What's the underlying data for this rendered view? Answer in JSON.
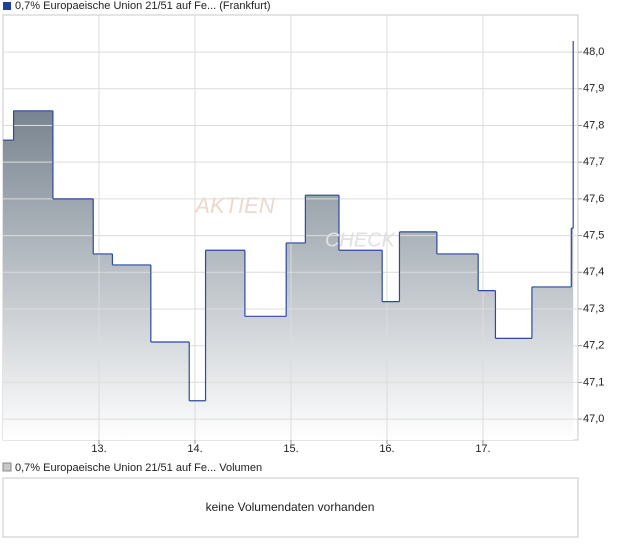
{
  "chart_data": {
    "type": "line",
    "legend_name": "0,7% Europaeische Union 21/51 auf Fe...",
    "exchange": "(Frankfurt)",
    "watermark": [
      "AKTIEN",
      "CHECK"
    ],
    "line_color": "#2b4aa0",
    "area_top_color": "#5c6a78",
    "legend_color": "#1f3f99",
    "x": [
      12.0,
      12.11,
      12.52,
      12.94,
      13.14,
      13.54,
      13.94,
      14.11,
      14.52,
      14.95,
      15.15,
      15.5,
      15.95,
      16.13,
      16.52,
      16.95,
      17.13,
      17.51,
      17.92,
      17.94
    ],
    "values": [
      47.76,
      47.84,
      47.6,
      47.45,
      47.42,
      47.21,
      47.05,
      47.46,
      47.28,
      47.48,
      47.61,
      47.46,
      47.32,
      47.51,
      47.45,
      47.35,
      47.22,
      47.36,
      47.52,
      48.03
    ],
    "xlim": [
      12,
      17.99
    ],
    "xticks": [
      {
        "value": 13,
        "label": "13."
      },
      {
        "value": 14,
        "label": "14."
      },
      {
        "value": 15,
        "label": "15."
      },
      {
        "value": 16,
        "label": "16."
      },
      {
        "value": 17,
        "label": "17."
      }
    ],
    "ylim": [
      46.943,
      48.101
    ],
    "yticks": [
      {
        "value": 47.0,
        "label": "47,0"
      },
      {
        "value": 47.1,
        "label": "47,1"
      },
      {
        "value": 47.2,
        "label": "47,2"
      },
      {
        "value": 47.3,
        "label": "47,3"
      },
      {
        "value": 47.4,
        "label": "47,4"
      },
      {
        "value": 47.5,
        "label": "47,5"
      },
      {
        "value": 47.6,
        "label": "47,6"
      },
      {
        "value": 47.7,
        "label": "47,7"
      },
      {
        "value": 47.8,
        "label": "47,8"
      },
      {
        "value": 47.9,
        "label": "47,9"
      },
      {
        "value": 48.0,
        "label": "48,0"
      }
    ],
    "grid": true
  },
  "volume_panel": {
    "legend_name": "0,7% Europaeische Union 21/51 auf Fe...",
    "legend_suffix": "Volumen",
    "message": "keine Volumendaten vorhanden"
  }
}
